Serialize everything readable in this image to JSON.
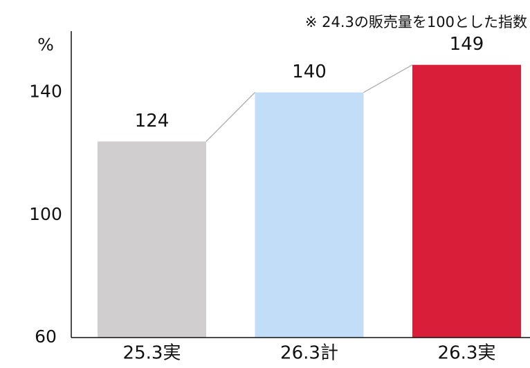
{
  "chart_data": {
    "type": "bar",
    "annotation": "※ 24.3の販売量を100とした指数",
    "y_unit": "%",
    "categories": [
      "25.3実",
      "26.3計",
      "26.3実"
    ],
    "values": [
      124,
      140,
      149
    ],
    "colors": [
      "#d0cece",
      "#c2ddf7",
      "#d81e39"
    ],
    "connector_color": "#a6a6a6",
    "ylim": [
      60,
      160
    ],
    "yticks": [
      60,
      100,
      140
    ],
    "grid": false
  }
}
